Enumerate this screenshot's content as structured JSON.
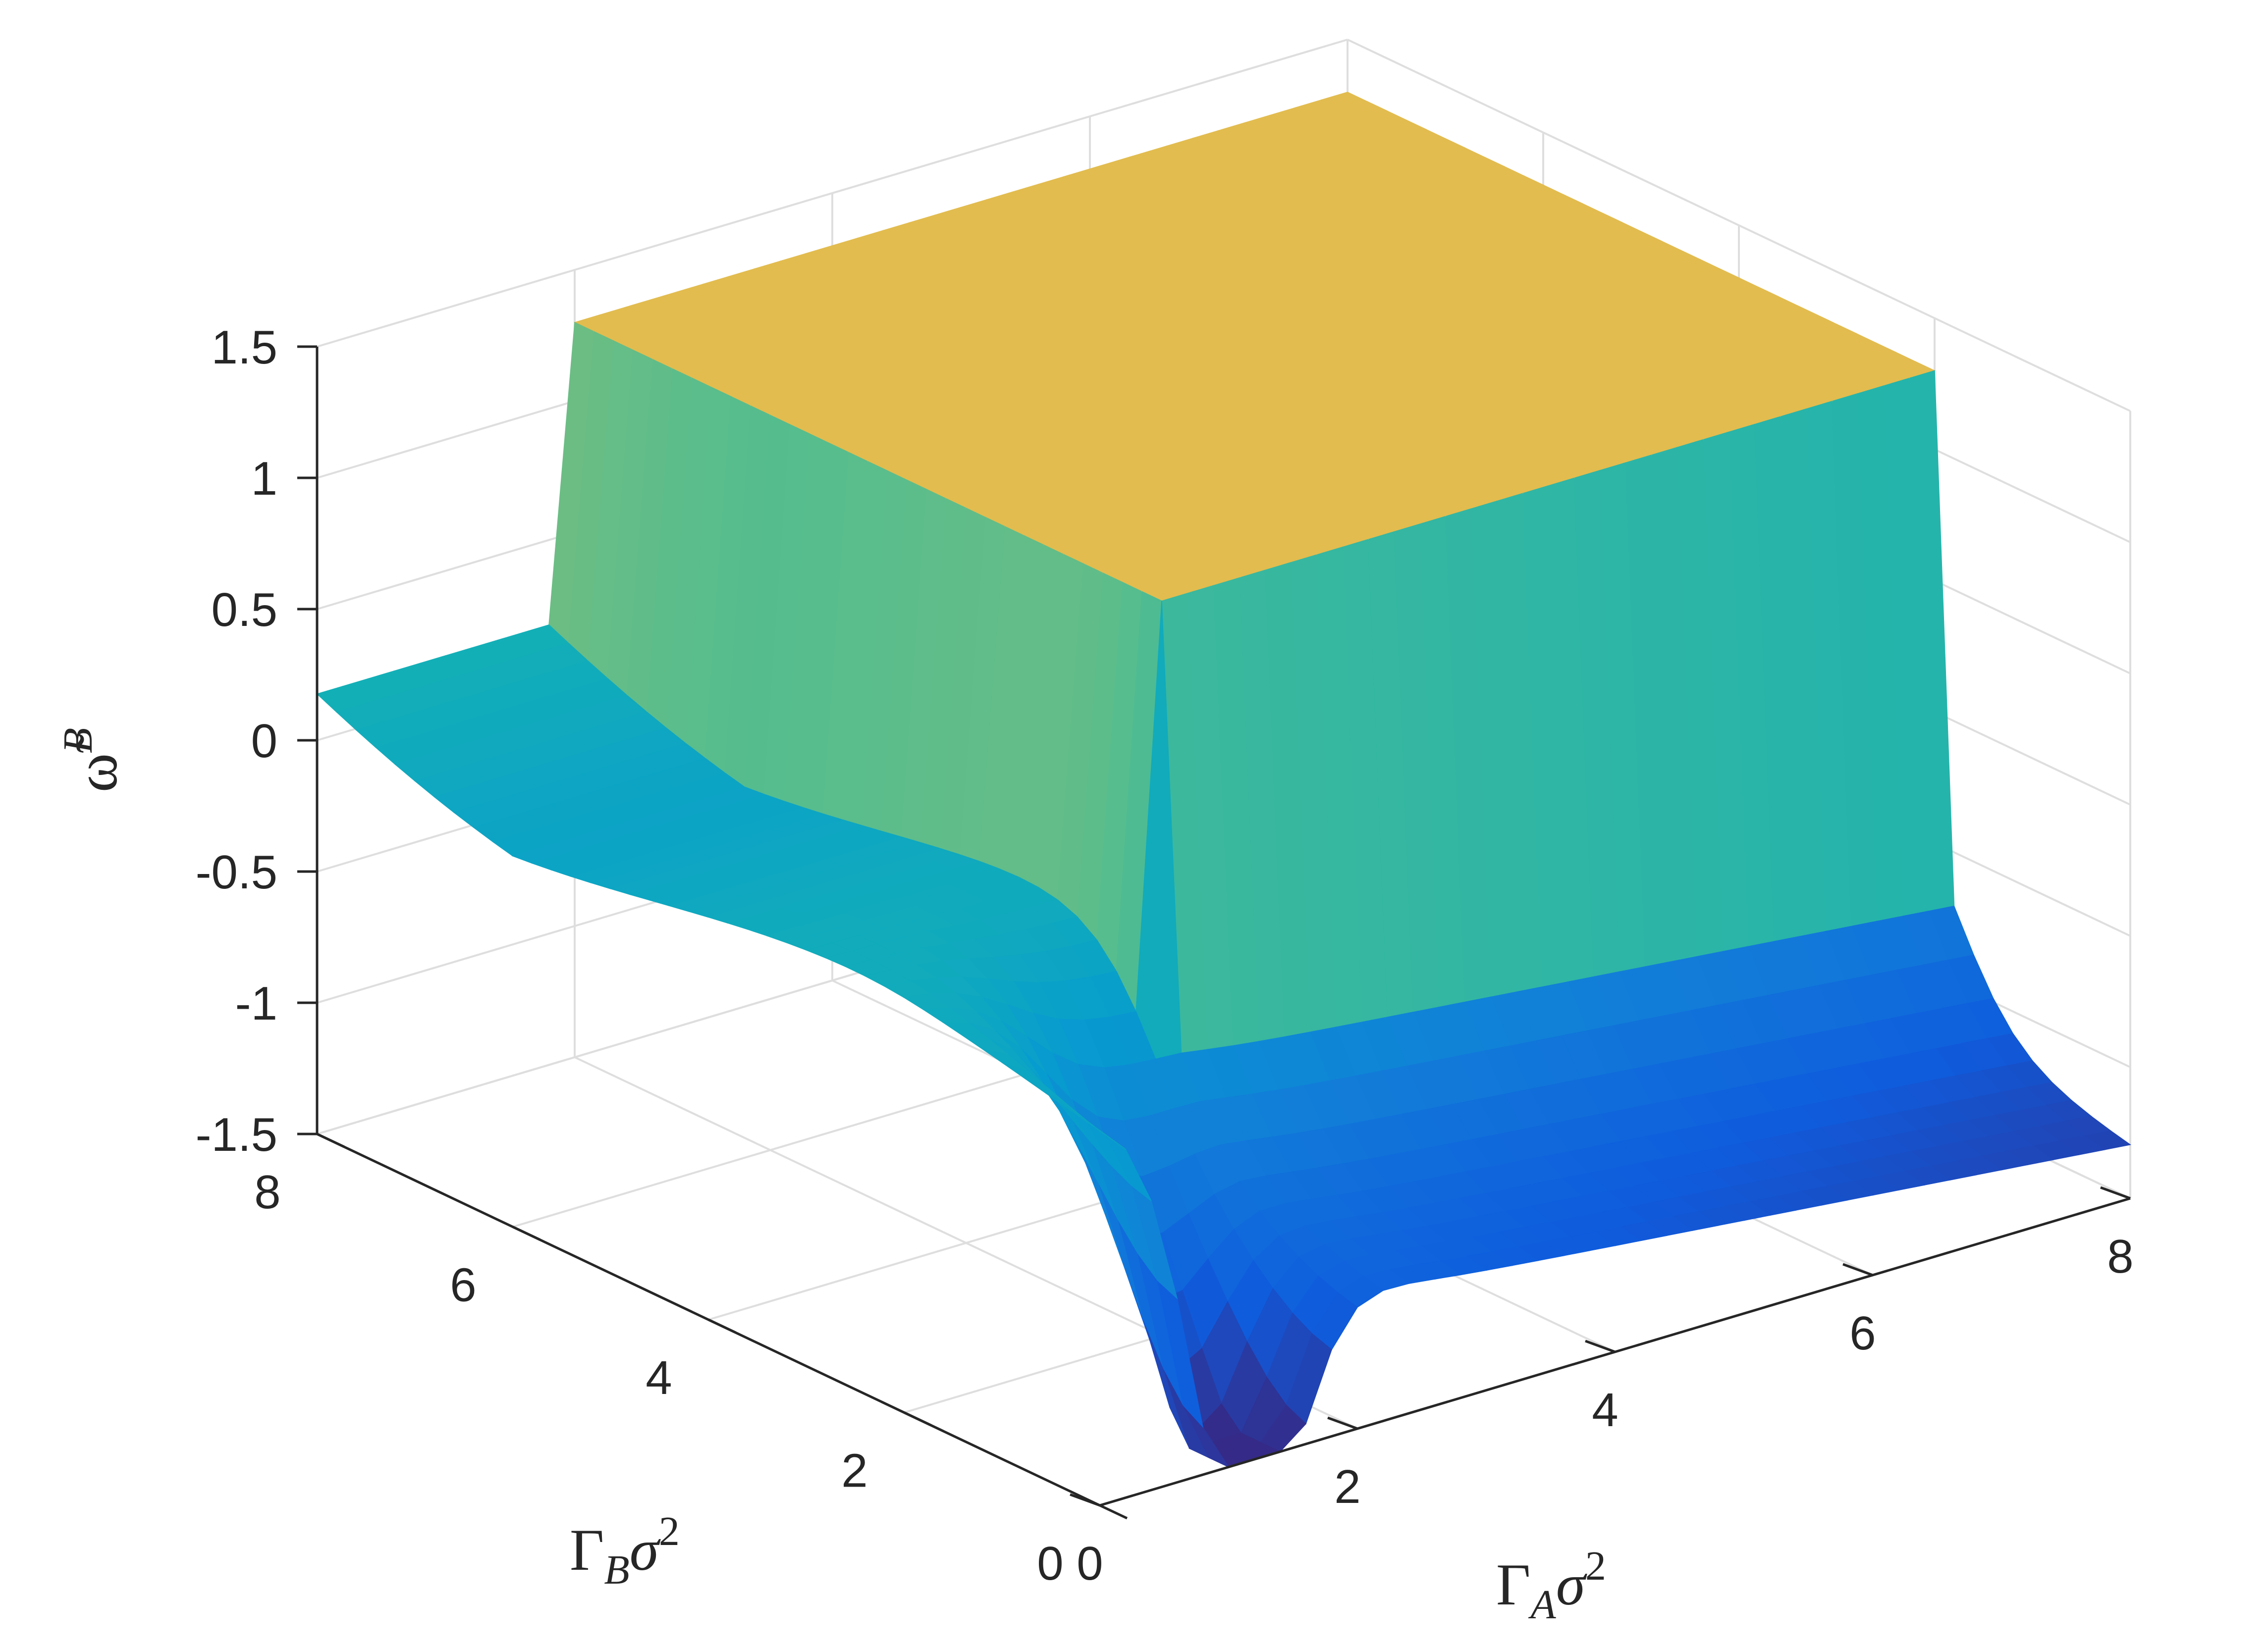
{
  "chart_data": {
    "type": "surface",
    "title": "",
    "xlabel": {
      "base": "Γ",
      "sub": "A",
      "rest": "σ",
      "sup": "2"
    },
    "ylabel": {
      "base": "Γ",
      "sub": "B",
      "rest": "σ",
      "sup": "2"
    },
    "zlabel": {
      "base": "ω̃",
      "sup": "B"
    },
    "xlim": [
      0,
      8
    ],
    "ylim": [
      0,
      8
    ],
    "zlim": [
      -1.5,
      1.5
    ],
    "xticks": [
      0,
      2,
      4,
      6,
      8
    ],
    "yticks": [
      0,
      2,
      4,
      6,
      8
    ],
    "zticks": [
      -1.5,
      -1,
      -0.5,
      0,
      0.5,
      1,
      1.5
    ],
    "xtick_labels": [
      "0",
      "2",
      "4",
      "6",
      "8"
    ],
    "ytick_labels": [
      "0",
      "2",
      "4",
      "6",
      "8"
    ],
    "ztick_labels": [
      "-1.5",
      "-1",
      "-0.5",
      "0",
      "0.5",
      "1",
      "1.5"
    ],
    "grid": true,
    "colormap": "parula",
    "plateau": {
      "x_range": [
        2,
        8
      ],
      "y_range": [
        2,
        8
      ],
      "value": 1.3
    },
    "surface_z_approx": {
      "x": [
        0,
        1,
        2,
        3,
        4,
        6,
        8
      ],
      "y": [
        0,
        1,
        2,
        3,
        4,
        6,
        8
      ],
      "note_rows_are_y": true,
      "z": [
        [
          -0.1,
          -1.45,
          -1.2,
          -1.15,
          -1.1,
          -1.05,
          -1.05
        ],
        [
          -0.1,
          -0.9,
          -1.05,
          -1.05,
          -1.05,
          -1.05,
          -1.05
        ],
        [
          -0.15,
          -0.5,
          -0.6,
          -0.7,
          -0.75,
          -0.8,
          -0.85
        ],
        [
          -0.1,
          -0.3,
          1.3,
          1.3,
          1.3,
          1.3,
          1.3
        ],
        [
          -0.05,
          -0.15,
          1.3,
          1.3,
          1.3,
          1.3,
          1.3
        ],
        [
          0.05,
          0.0,
          1.3,
          1.3,
          1.3,
          1.3,
          1.3
        ],
        [
          0.0,
          0.3,
          1.3,
          1.3,
          1.3,
          1.3,
          1.3
        ]
      ]
    }
  }
}
